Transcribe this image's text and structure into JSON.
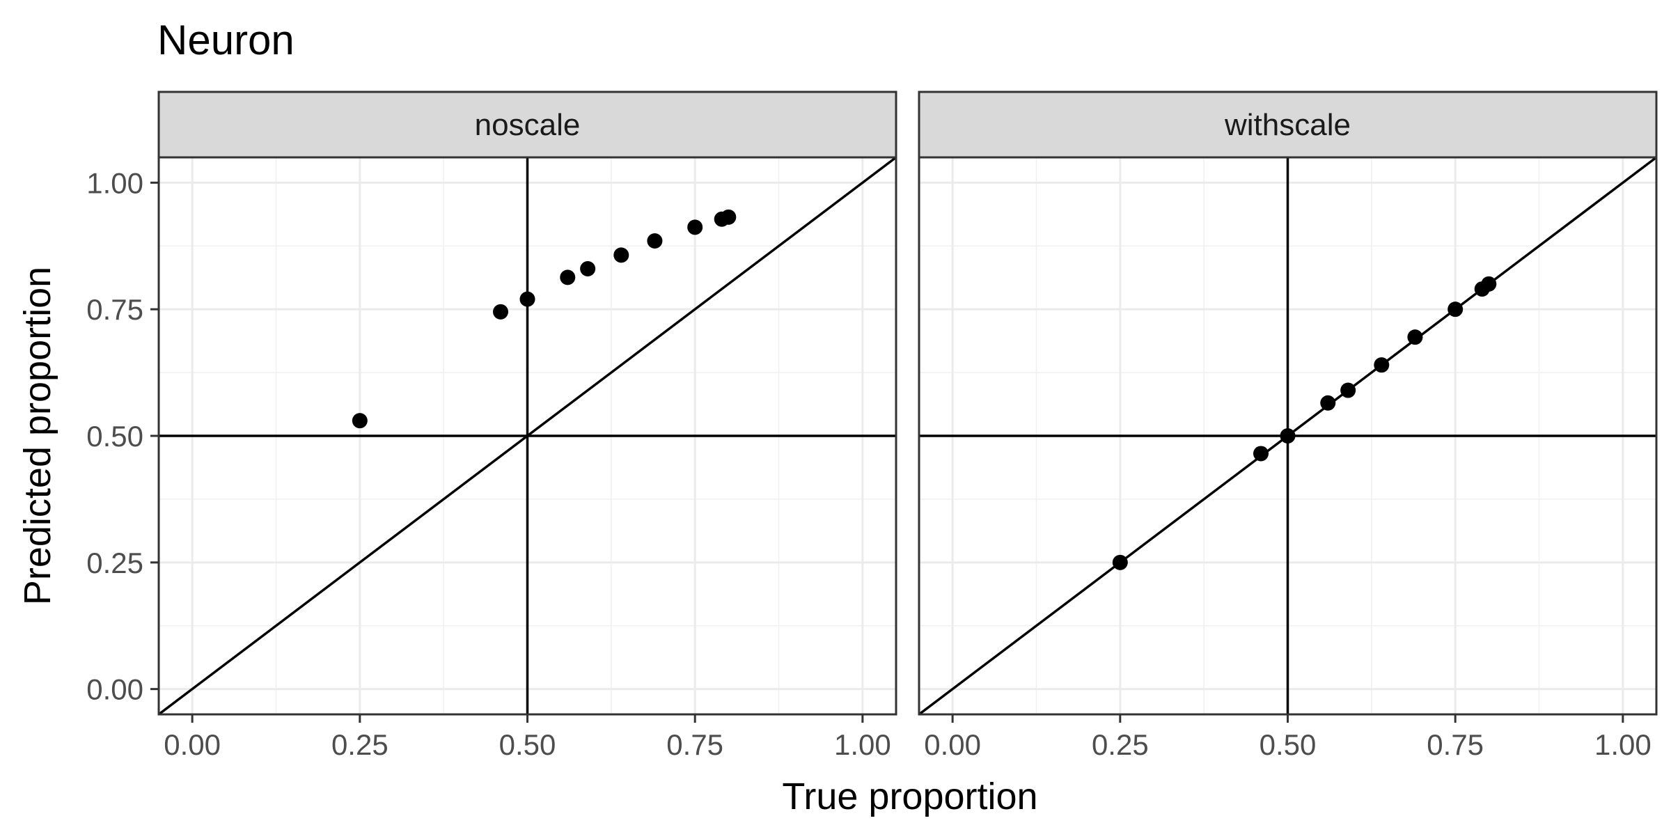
{
  "chart_data": {
    "type": "scatter",
    "title": "Neuron",
    "xlabel": "True proportion",
    "ylabel": "Predicted proportion",
    "xlim": [
      -0.05,
      1.05
    ],
    "ylim": [
      -0.05,
      1.05
    ],
    "x_ticks": [
      "0.00",
      "0.25",
      "0.50",
      "0.75",
      "1.00"
    ],
    "y_ticks": [
      "0.00",
      "0.25",
      "0.50",
      "0.75",
      "1.00"
    ],
    "grid": true,
    "reference_lines": {
      "hline": 0.5,
      "vline": 0.5,
      "diagonal": "y = x"
    },
    "panels": [
      {
        "name": "noscale",
        "x": [
          0.25,
          0.46,
          0.5,
          0.56,
          0.59,
          0.64,
          0.69,
          0.75,
          0.79,
          0.8
        ],
        "y": [
          0.53,
          0.745,
          0.77,
          0.813,
          0.83,
          0.857,
          0.885,
          0.912,
          0.928,
          0.932
        ]
      },
      {
        "name": "withscale",
        "x": [
          0.25,
          0.46,
          0.5,
          0.56,
          0.59,
          0.64,
          0.69,
          0.75,
          0.79,
          0.8
        ],
        "y": [
          0.25,
          0.465,
          0.5,
          0.565,
          0.59,
          0.64,
          0.695,
          0.75,
          0.79,
          0.8
        ]
      }
    ]
  }
}
